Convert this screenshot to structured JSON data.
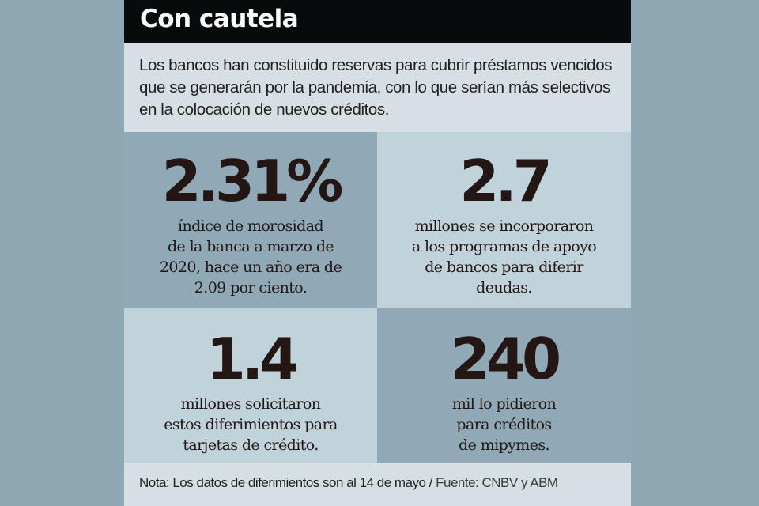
{
  "header": {
    "title": "Con cautela"
  },
  "intro": {
    "text": "Los bancos han constituido reservas para cubrir  préstamos vencidos que se generarán por la pandemia, con lo que serían más selectivos en la colocación de nuevos créditos."
  },
  "stats": [
    {
      "value": "2.31%",
      "lines": [
        "índice de morosidad",
        "de la banca a marzo de",
        "2020, hace un año era de",
        "2.09 por ciento."
      ]
    },
    {
      "value": "2.7",
      "lines": [
        "millones se incorporaron",
        "a los programas de apoyo",
        "de bancos para diferir",
        "deudas."
      ]
    },
    {
      "value": "1.4",
      "lines": [
        "millones solicitaron",
        "estos diferimientos para",
        "tarjetas de crédito."
      ]
    },
    {
      "value": "240",
      "lines": [
        "mil lo pidieron",
        "para créditos",
        "de mipymes."
      ]
    }
  ],
  "footer": {
    "note": "Nota: Los datos de diferimientos son al 14 de mayo / ",
    "source": "Fuente: CNBV y ABM"
  },
  "colors": {
    "background": "#8ea8b4",
    "header": "#070b0c",
    "light_band": "#d6dfe4",
    "cell_dark": "#8fa9b6",
    "cell_light": "#c0d2da",
    "text": "#231613"
  }
}
